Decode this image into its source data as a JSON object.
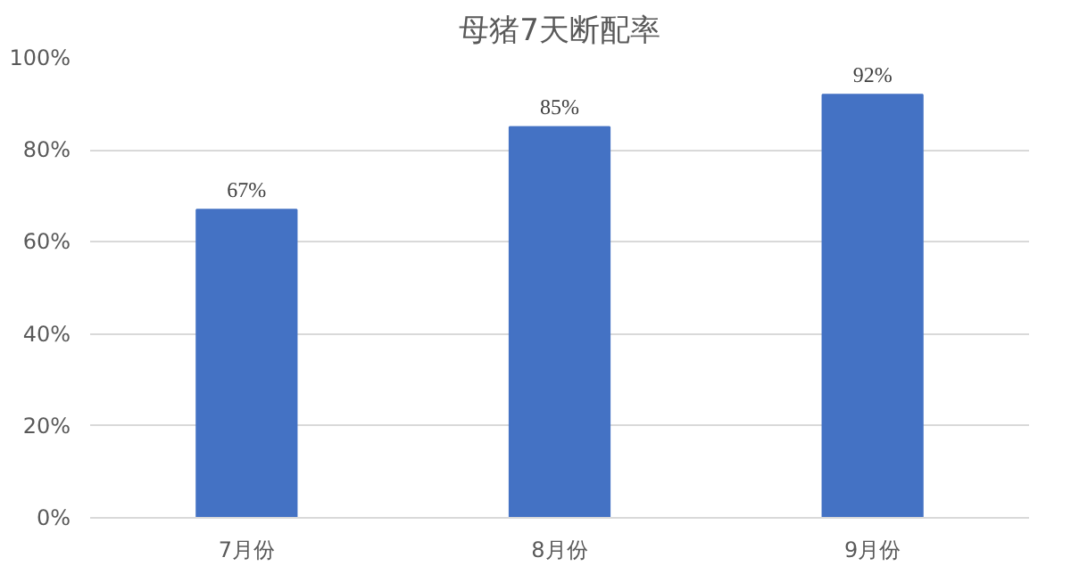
{
  "chart_data": {
    "type": "bar",
    "title": "母猪7天断配率",
    "categories": [
      "7月份",
      "8月份",
      "9月份"
    ],
    "values": [
      67,
      85,
      92
    ],
    "value_labels": [
      "67%",
      "85%",
      "92%"
    ],
    "color": "#4472c4",
    "ylim": [
      0,
      100
    ],
    "yticks": [
      {
        "value": 0,
        "label": "0%"
      },
      {
        "value": 20,
        "label": "20%"
      },
      {
        "value": 40,
        "label": "40%"
      },
      {
        "value": 60,
        "label": "60%"
      },
      {
        "value": 80,
        "label": "80%"
      },
      {
        "value": 100,
        "label": "100%"
      }
    ],
    "grid": "y"
  }
}
